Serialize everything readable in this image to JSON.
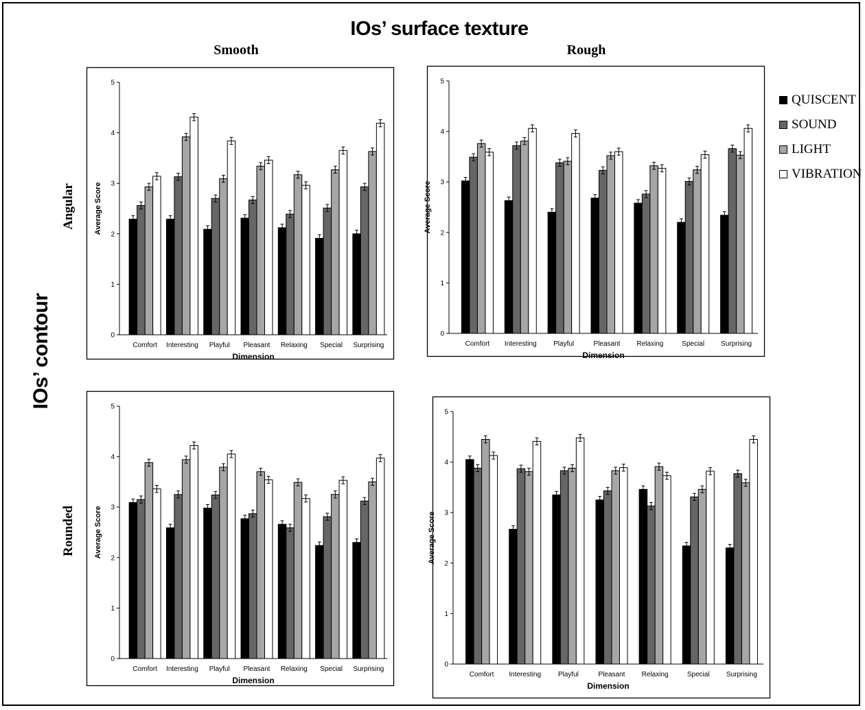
{
  "figure": {
    "title": "IOs’ surface texture",
    "column_titles": [
      "Smooth",
      "Rough"
    ],
    "row_title": "IOs’ contour",
    "row_labels": [
      "Angular",
      "Rounded"
    ]
  },
  "legend": [
    {
      "name": "QUISCENT",
      "color": "#000000"
    },
    {
      "name": "SOUND",
      "color": "#666666"
    },
    {
      "name": "LIGHT",
      "color": "#a6a6a6"
    },
    {
      "name": "VIBRATION",
      "color": "#ffffff"
    }
  ],
  "chart_data": [
    {
      "type": "bar",
      "panel": "Angular / Smooth",
      "xlabel": "Dimension",
      "ylabel": "Average Score",
      "ylim": [
        0,
        5
      ],
      "yticks": [
        "0",
        "1",
        "2",
        "3",
        "4",
        "5"
      ],
      "error_bars": true,
      "categories": [
        "Comfort",
        "Interesting",
        "Playful",
        "Pleasant",
        "Relaxing",
        "Special",
        "Surprising"
      ],
      "series": [
        {
          "name": "QUISCENT",
          "values": [
            2.29,
            2.29,
            2.09,
            2.31,
            2.12,
            1.91,
            2.0
          ]
        },
        {
          "name": "SOUND",
          "values": [
            2.56,
            3.13,
            2.7,
            2.67,
            2.39,
            2.51,
            2.93
          ]
        },
        {
          "name": "LIGHT",
          "values": [
            2.93,
            3.92,
            3.09,
            3.34,
            3.17,
            3.27,
            3.63
          ]
        },
        {
          "name": "VIBRATION",
          "values": [
            3.14,
            4.31,
            3.84,
            3.46,
            2.96,
            3.65,
            4.19
          ]
        }
      ]
    },
    {
      "type": "bar",
      "panel": "Angular / Rough",
      "xlabel": "Dimension",
      "ylabel": "Average Score",
      "ylim": [
        0,
        5
      ],
      "yticks": [
        "0",
        "1",
        "2",
        "3",
        "4",
        "5"
      ],
      "error_bars": true,
      "categories": [
        "Comfort",
        "Interesting",
        "Playful",
        "Pleasant",
        "Relaxing",
        "Special",
        "Surprising"
      ],
      "series": [
        {
          "name": "QUISCENT",
          "values": [
            3.02,
            2.63,
            2.4,
            2.68,
            2.58,
            2.2,
            2.34
          ]
        },
        {
          "name": "SOUND",
          "values": [
            3.49,
            3.72,
            3.38,
            3.23,
            2.76,
            3.01,
            3.66
          ]
        },
        {
          "name": "LIGHT",
          "values": [
            3.76,
            3.81,
            3.41,
            3.52,
            3.32,
            3.24,
            3.53
          ]
        },
        {
          "name": "VIBRATION",
          "values": [
            3.59,
            4.06,
            3.96,
            3.6,
            3.27,
            3.54,
            4.06
          ]
        }
      ]
    },
    {
      "type": "bar",
      "panel": "Rounded / Smooth",
      "xlabel": "Dimension",
      "ylabel": "Average Score",
      "ylim": [
        0,
        5
      ],
      "yticks": [
        "0",
        "1",
        "2",
        "3",
        "4",
        "5"
      ],
      "error_bars": true,
      "categories": [
        "Comfort",
        "Interesting",
        "Playful",
        "Pleasant",
        "Relaxing",
        "Special",
        "Surprising"
      ],
      "series": [
        {
          "name": "QUISCENT",
          "values": [
            3.09,
            2.59,
            2.98,
            2.77,
            2.66,
            2.24,
            2.3
          ]
        },
        {
          "name": "SOUND",
          "values": [
            3.15,
            3.25,
            3.24,
            2.87,
            2.59,
            2.81,
            3.12
          ]
        },
        {
          "name": "LIGHT",
          "values": [
            3.88,
            3.94,
            3.79,
            3.7,
            3.49,
            3.25,
            3.5
          ]
        },
        {
          "name": "VIBRATION",
          "values": [
            3.36,
            4.22,
            4.05,
            3.54,
            3.17,
            3.53,
            3.97
          ]
        }
      ]
    },
    {
      "type": "bar",
      "panel": "Rounded / Rough",
      "xlabel": "Dimension",
      "ylabel": "Average Score",
      "ylim": [
        0,
        5
      ],
      "yticks": [
        "0",
        "1",
        "2",
        "3",
        "4",
        "5"
      ],
      "error_bars": true,
      "categories": [
        "Comfort",
        "Interesting",
        "Playful",
        "Pleasant",
        "Relaxing",
        "Special",
        "Surprising"
      ],
      "series": [
        {
          "name": "QUISCENT",
          "values": [
            4.05,
            2.67,
            3.35,
            3.25,
            3.46,
            2.34,
            2.3
          ]
        },
        {
          "name": "SOUND",
          "values": [
            3.88,
            3.87,
            3.83,
            3.43,
            3.13,
            3.31,
            3.77
          ]
        },
        {
          "name": "LIGHT",
          "values": [
            4.45,
            3.81,
            3.88,
            3.83,
            3.91,
            3.46,
            3.59
          ]
        },
        {
          "name": "VIBRATION",
          "values": [
            4.13,
            4.41,
            4.48,
            3.89,
            3.73,
            3.82,
            4.45
          ]
        }
      ]
    }
  ]
}
